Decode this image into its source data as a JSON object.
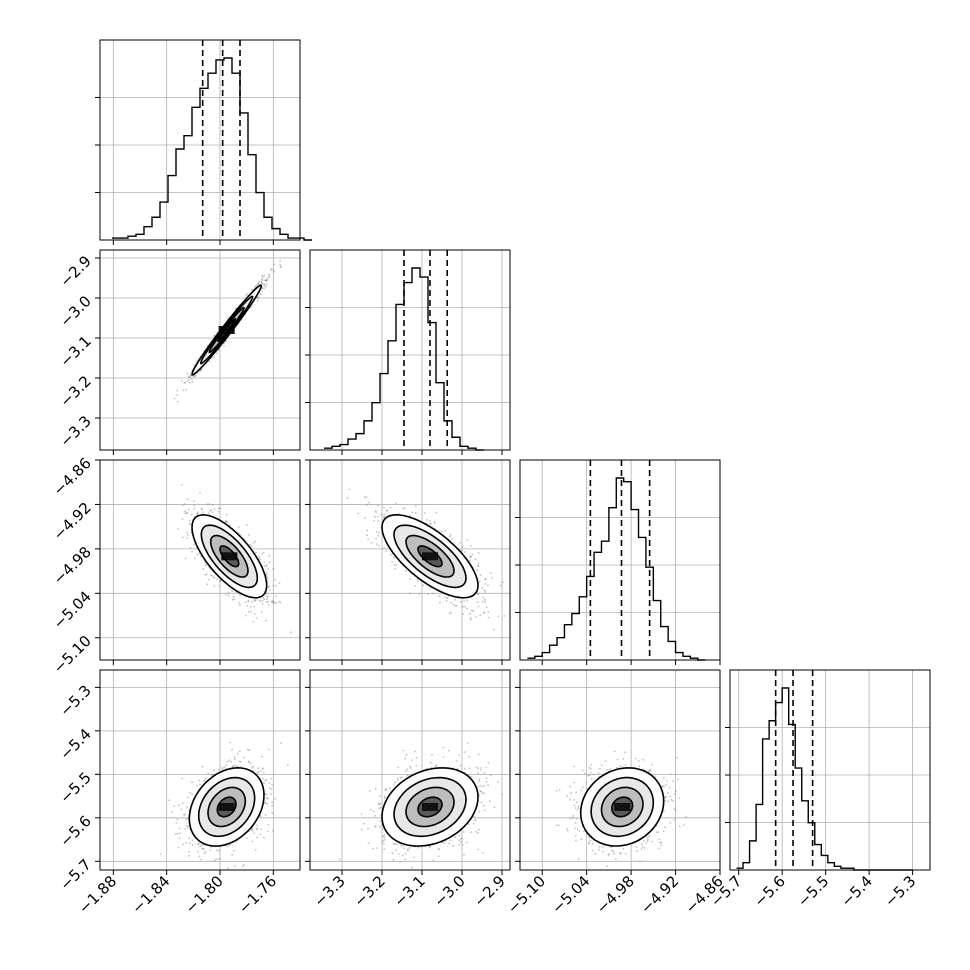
{
  "chart_data": {
    "type": "corner",
    "title": "",
    "parameters": [
      "",
      "",
      "",
      ""
    ],
    "grid": true,
    "panel_ranges": [
      [
        -1.89,
        -1.74
      ],
      [
        -3.38,
        -2.88
      ],
      [
        -5.13,
        -4.86
      ],
      [
        -5.72,
        -5.26
      ]
    ],
    "tick_values": [
      [
        -1.88,
        -1.84,
        -1.8,
        -1.76
      ],
      [
        -3.3,
        -3.2,
        -3.1,
        -3.0,
        -2.9
      ],
      [
        -5.1,
        -5.04,
        -4.98,
        -4.92,
        -4.86
      ],
      [
        -5.7,
        -5.6,
        -5.5,
        -5.4,
        -5.3
      ]
    ],
    "tick_labels": [
      [
        "−1.88",
        "−1.84",
        "−1.80",
        "−1.76"
      ],
      [
        "−3.3",
        "−3.2",
        "−3.1",
        "−3.0",
        "−2.9"
      ],
      [
        "−5.10",
        "−5.04",
        "−4.98",
        "−4.92",
        "−4.86"
      ],
      [
        "−5.7",
        "−5.6",
        "−5.5",
        "−5.4",
        "−5.3"
      ]
    ],
    "quantiles": [
      [
        -1.813,
        -1.798,
        -1.785
      ],
      [
        -3.145,
        -3.08,
        -3.037
      ],
      [
        -5.035,
        -4.993,
        -4.955
      ],
      [
        -5.615,
        -5.575,
        -5.53
      ]
    ],
    "marginals": [
      {
        "edges_start": -1.881,
        "bin_width": 0.006,
        "counts": [
          1,
          1,
          2,
          3,
          7,
          12,
          20,
          34,
          48,
          55,
          70,
          80,
          88,
          95,
          96,
          88,
          67,
          45,
          25,
          12,
          6,
          3,
          1,
          1,
          0
        ]
      },
      {
        "edges_start": -3.345,
        "bin_width": 0.02,
        "counts": [
          1,
          2,
          3,
          6,
          9,
          16,
          26,
          42,
          60,
          80,
          92,
          100,
          95,
          70,
          37,
          16,
          7,
          2,
          1,
          0
        ]
      },
      {
        "edges_start": -5.12,
        "bin_width": 0.01,
        "counts": [
          1,
          2,
          4,
          8,
          12,
          19,
          25,
          34,
          45,
          58,
          64,
          82,
          98,
          96,
          81,
          66,
          50,
          32,
          18,
          10,
          4,
          2,
          1,
          0
        ]
      },
      {
        "edges_start": -5.705,
        "bin_width": 0.015,
        "counts": [
          1,
          4,
          16,
          36,
          72,
          82,
          92,
          100,
          80,
          56,
          38,
          26,
          14,
          8,
          4,
          2,
          1,
          1,
          0,
          0,
          0,
          0,
          0,
          0,
          0,
          0,
          0
        ]
      }
    ],
    "joint": [
      {
        "x_param": 0,
        "y_param": 1,
        "mean": [
          -1.795,
          -3.08
        ],
        "sd": [
          0.013,
          0.056
        ],
        "rho": 0.985
      },
      {
        "x_param": 0,
        "y_param": 2,
        "mean": [
          -1.793,
          -4.99
        ],
        "sd": [
          0.014,
          0.028
        ],
        "rho": -0.7
      },
      {
        "x_param": 1,
        "y_param": 2,
        "mean": [
          -3.08,
          -4.99
        ],
        "sd": [
          0.06,
          0.028
        ],
        "rho": -0.7
      },
      {
        "x_param": 0,
        "y_param": 3,
        "mean": [
          -1.795,
          -5.575
        ],
        "sd": [
          0.014,
          0.045
        ],
        "rho": 0.3
      },
      {
        "x_param": 1,
        "y_param": 3,
        "mean": [
          -3.08,
          -5.575
        ],
        "sd": [
          0.06,
          0.045
        ],
        "rho": 0.25
      },
      {
        "x_param": 2,
        "y_param": 3,
        "mean": [
          -4.992,
          -5.575
        ],
        "sd": [
          0.028,
          0.045
        ],
        "rho": 0.15
      }
    ],
    "contour_levels_sigma": [
      0.5,
      1.0,
      1.5,
      2.0
    ],
    "colors": {
      "hist": "#000000",
      "points": "#888888",
      "grid": "#b0b0b0",
      "quantile": "#000000"
    }
  }
}
